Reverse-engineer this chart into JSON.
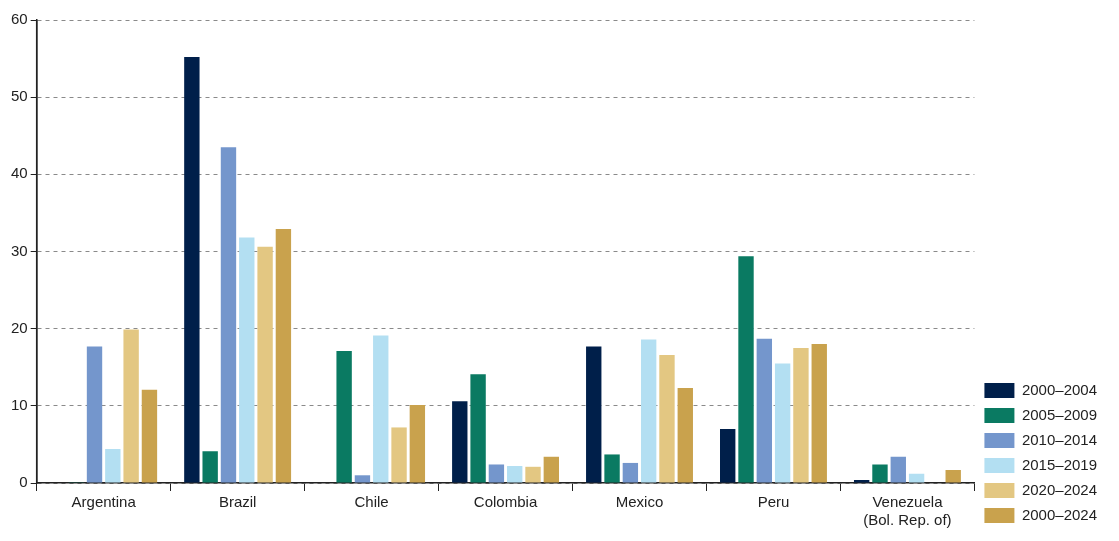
{
  "chart_data": {
    "type": "bar",
    "categories": [
      "Argentina",
      "Brazil",
      "Chile",
      "Colombia",
      "Mexico",
      "Peru",
      "Venezuela\n(Bol. Rep. of)"
    ],
    "series": [
      {
        "name": "2000–2004",
        "color": "#001f4a",
        "values": [
          null,
          55.2,
          null,
          10.6,
          17.7,
          7.0,
          0.4
        ]
      },
      {
        "name": "2005–2009",
        "color": "#0a7a62",
        "values": [
          0.1,
          4.1,
          17.1,
          14.1,
          3.7,
          29.4,
          2.4
        ]
      },
      {
        "name": "2010–2014",
        "color": "#7496cc",
        "values": [
          17.7,
          43.5,
          1.0,
          2.4,
          2.6,
          18.7,
          3.4
        ]
      },
      {
        "name": "2015–2019",
        "color": "#b3dff2",
        "values": [
          4.4,
          31.8,
          19.1,
          2.2,
          18.6,
          15.5,
          1.2
        ]
      },
      {
        "name": "2020–2024",
        "color": "#e3c782",
        "values": [
          19.9,
          30.6,
          7.2,
          2.1,
          16.6,
          17.5,
          null
        ]
      },
      {
        "name": "2000–2024",
        "color": "#c9a24d",
        "values": [
          12.1,
          32.9,
          10.1,
          3.4,
          12.3,
          18.0,
          1.7
        ]
      }
    ],
    "ylim": [
      0,
      60
    ],
    "yticks": [
      0,
      10,
      20,
      30,
      40,
      50,
      60
    ],
    "grid": "y",
    "legend": "bottom right"
  }
}
